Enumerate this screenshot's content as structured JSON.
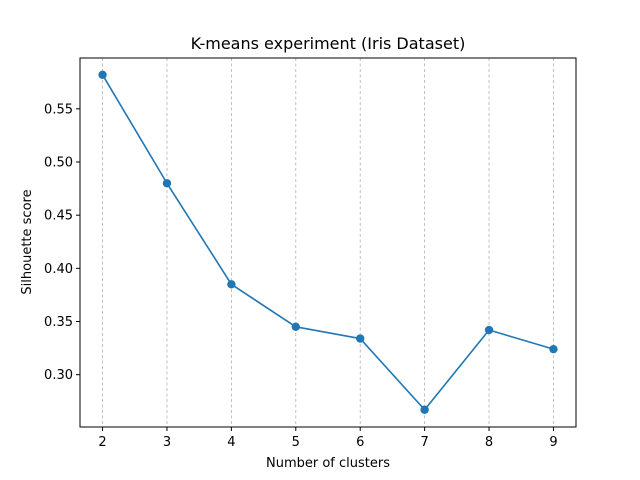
{
  "chart_data": {
    "type": "line",
    "title": "K-means experiment (Iris Dataset)",
    "xlabel": "Number of clusters",
    "ylabel": "Silhouette score",
    "x": [
      2,
      3,
      4,
      5,
      6,
      7,
      8,
      9
    ],
    "series": [
      {
        "values": [
          0.582,
          0.48,
          0.385,
          0.345,
          0.334,
          0.267,
          0.342,
          0.324
        ],
        "color": "#1f77b4",
        "marker": "circle"
      }
    ],
    "xlim": [
      1.65,
      9.35
    ],
    "ylim": [
      0.2508,
      0.5978
    ],
    "xticks": [
      "2",
      "3",
      "4",
      "5",
      "6",
      "7",
      "8",
      "9"
    ],
    "yticks": [
      "0.30",
      "0.35",
      "0.40",
      "0.45",
      "0.50",
      "0.55"
    ],
    "ytick_values": [
      0.3,
      0.35,
      0.4,
      0.45,
      0.5,
      0.55
    ],
    "grid": {
      "axis": "x",
      "style": "dashed",
      "color": "#b0b0b0"
    },
    "legend": "none"
  }
}
